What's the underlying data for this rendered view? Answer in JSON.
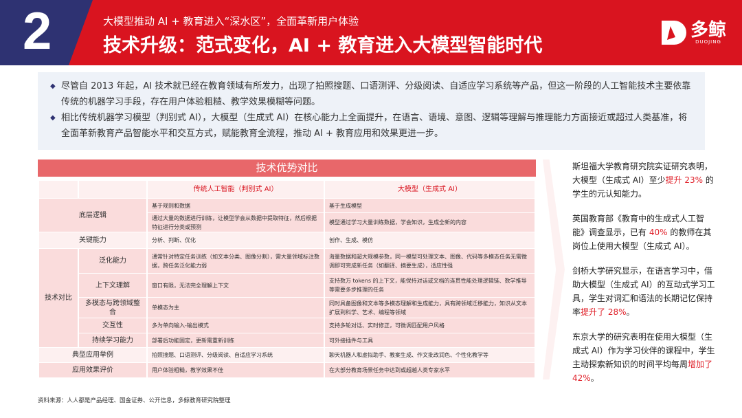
{
  "header": {
    "number": "2",
    "subtitle": "大模型推动 AI + 教育进入“深水区”，全面革新用户体验",
    "title": "技术升级：范式变化，AI + 教育进入大模型智能时代",
    "logo_cn": "多鲸",
    "logo_en": "DUOJING",
    "colors": {
      "red": "#d9141f",
      "navy": "#2e3272"
    }
  },
  "bullets": [
    "尽管自 2013 年起，AI 技术就已经在教育领域有所发力，出现了拍照搜题、口语测评、分级阅读、自适应学习系统等产品，但这一阶段的人工智能技术主要依靠传统的机器学习手段，存在用户体验粗糙、教学效果模糊等问题。",
    "相比传统机器学习模型（判别式 AI），大模型（生成式 AI）在核心能力上全面提升，在语言、语境、意图、逻辑等理解与推理能力方面接近或超过人类基准，将全面革新教育产品智能水平和交互方式，赋能教育全流程，推动 AI + 教育应用和效果更进一步。"
  ],
  "table": {
    "title": "技术优势对比",
    "col_traditional": "传统人工智能（判别式 AI）",
    "col_llm": "大模型（生成式 AI）",
    "group_tech": "技术对比",
    "rows": [
      {
        "label": "底层逻辑",
        "trad": "基于规则和数据",
        "llm": "基于生成模型"
      },
      {
        "label": "",
        "trad": "通过大量的数据进行训练，让模型学会从数据中提取特征，然后根据特征进行分类或预测",
        "llm": "模型通过学习大量训练数据，学会知识，生成全新的内容"
      },
      {
        "label": "关键能力",
        "trad": "分析、判断、优化",
        "llm": "创作、生成、模仿"
      },
      {
        "label": "泛化能力",
        "trad": "通常针对特定任务训练（如文本分类、图像分割），需大量领域标注数据，跨任务泛化能力弱",
        "llm": "海量数据和超大规模参数，同一模型可处理文本、图像、代码等多模态任务无需微调即可完成新任务（如翻译、摘要生成），适应性强"
      },
      {
        "label": "上下文理解",
        "trad": "窗口有限，无法完全理解上下文",
        "llm": "支持数万 tokens 的上下文，能保持对话或文档的连贯性能处理逻辑链、数学推导等需要多步推理的任务"
      },
      {
        "label": "多模态与跨领域整合",
        "trad": "单模态为主",
        "llm": "同时具备图像和文本等多模态理解和生成能力，具有跨领域迁移能力，知识从文本扩展到科学、艺术、编程等领域"
      },
      {
        "label": "交互性",
        "trad": "多为单向输入-输出模式",
        "llm": "支持多轮对话、实时修正，可微调匹配用户风格"
      },
      {
        "label": "持续学习能力",
        "trad": "部署后功能固定，更新需重新训练",
        "llm": "可外接插件与工具"
      },
      {
        "label": "典型应用举例",
        "trad": "拍照搜题、口语测评、分级阅读、自适应学习系统",
        "llm": "聊天机器人和虚拟助手、教案生成、作文批改润色、个性化教学等"
      },
      {
        "label": "应用效果评价",
        "trad": "用户体验粗糙，教学效果不佳",
        "llm": "在大部分教育场景任务中达到或超越人类专家水平"
      }
    ]
  },
  "side": [
    {
      "pre": "斯坦福大学教育研究院实证研究表明，大模型（生成式 AI）至少",
      "hl": "提升 23%",
      "post": " 的学生的元认知能力。"
    },
    {
      "pre": "英国教育部《教育中的生成式人工智能》调查显示，已有 ",
      "hl": "40%",
      "post": " 的教师在其岗位上使用大模型（生成式 AI）。"
    },
    {
      "pre": "剑桥大学研究显示，在语言学习中，借助大模型（生成式 AI）的互动式学习工具，学生对词汇和语法的长期记忆保持率",
      "hl": "提升了 28%",
      "post": "。"
    },
    {
      "pre": "东京大学的研究表明在使用大模型（生成式 AI）作为学习伙伴的课程中，学生主动探索新知识的时间平均每周",
      "hl": "增加了 42%",
      "post": "。"
    }
  ],
  "source": "资料来源：人人都是产品经理、国金证券、公开信息，多鲸教育研究院整理"
}
